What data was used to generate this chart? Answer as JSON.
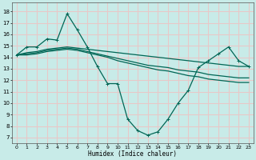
{
  "xlabel": "Humidex (Indice chaleur)",
  "bg_color": "#c8ebe8",
  "grid_color": "#e8c8c8",
  "line_color": "#006655",
  "xlim": [
    -0.5,
    23.5
  ],
  "ylim": [
    6.5,
    18.8
  ],
  "xticks": [
    0,
    1,
    2,
    3,
    4,
    5,
    6,
    7,
    8,
    9,
    10,
    11,
    12,
    13,
    14,
    15,
    16,
    17,
    18,
    19,
    20,
    21,
    22,
    23
  ],
  "yticks": [
    7,
    8,
    9,
    10,
    11,
    12,
    13,
    14,
    15,
    16,
    17,
    18
  ],
  "line1_x": [
    0,
    1,
    2,
    3,
    4,
    5,
    6,
    7,
    8,
    9,
    10,
    11,
    12,
    13,
    14,
    15,
    16,
    17,
    18,
    19,
    20,
    21,
    22,
    23
  ],
  "line1_y": [
    14.2,
    14.9,
    14.9,
    15.6,
    15.5,
    17.8,
    16.4,
    14.9,
    13.2,
    11.7,
    11.7,
    8.6,
    7.6,
    7.2,
    7.5,
    8.6,
    10.0,
    11.1,
    13.1,
    13.7,
    14.3,
    14.9,
    13.7,
    13.2
  ],
  "line2_x": [
    0,
    1,
    2,
    3,
    4,
    5,
    6,
    7,
    8,
    9,
    10,
    11,
    12,
    13,
    14,
    15,
    16,
    17,
    18,
    19,
    20,
    21,
    22,
    23
  ],
  "line2_y": [
    14.2,
    14.4,
    14.5,
    14.7,
    14.8,
    14.9,
    14.8,
    14.7,
    14.6,
    14.5,
    14.4,
    14.3,
    14.2,
    14.1,
    14.0,
    13.9,
    13.8,
    13.7,
    13.6,
    13.5,
    13.4,
    13.3,
    13.2,
    13.2
  ],
  "line3_x": [
    0,
    1,
    2,
    3,
    4,
    5,
    6,
    7,
    8,
    9,
    10,
    11,
    12,
    13,
    14,
    15,
    16,
    17,
    18,
    19,
    20,
    21,
    22,
    23
  ],
  "line3_y": [
    14.2,
    14.3,
    14.4,
    14.6,
    14.7,
    14.8,
    14.7,
    14.5,
    14.3,
    14.1,
    13.9,
    13.7,
    13.5,
    13.3,
    13.2,
    13.1,
    12.9,
    12.8,
    12.7,
    12.5,
    12.4,
    12.3,
    12.2,
    12.2
  ],
  "line4_x": [
    0,
    1,
    2,
    3,
    4,
    5,
    6,
    7,
    8,
    9,
    10,
    11,
    12,
    13,
    14,
    15,
    16,
    17,
    18,
    19,
    20,
    21,
    22,
    23
  ],
  "line4_y": [
    14.2,
    14.2,
    14.3,
    14.5,
    14.6,
    14.7,
    14.6,
    14.4,
    14.2,
    14.0,
    13.7,
    13.5,
    13.3,
    13.1,
    12.9,
    12.8,
    12.6,
    12.4,
    12.3,
    12.1,
    12.0,
    11.9,
    11.8,
    11.8
  ]
}
